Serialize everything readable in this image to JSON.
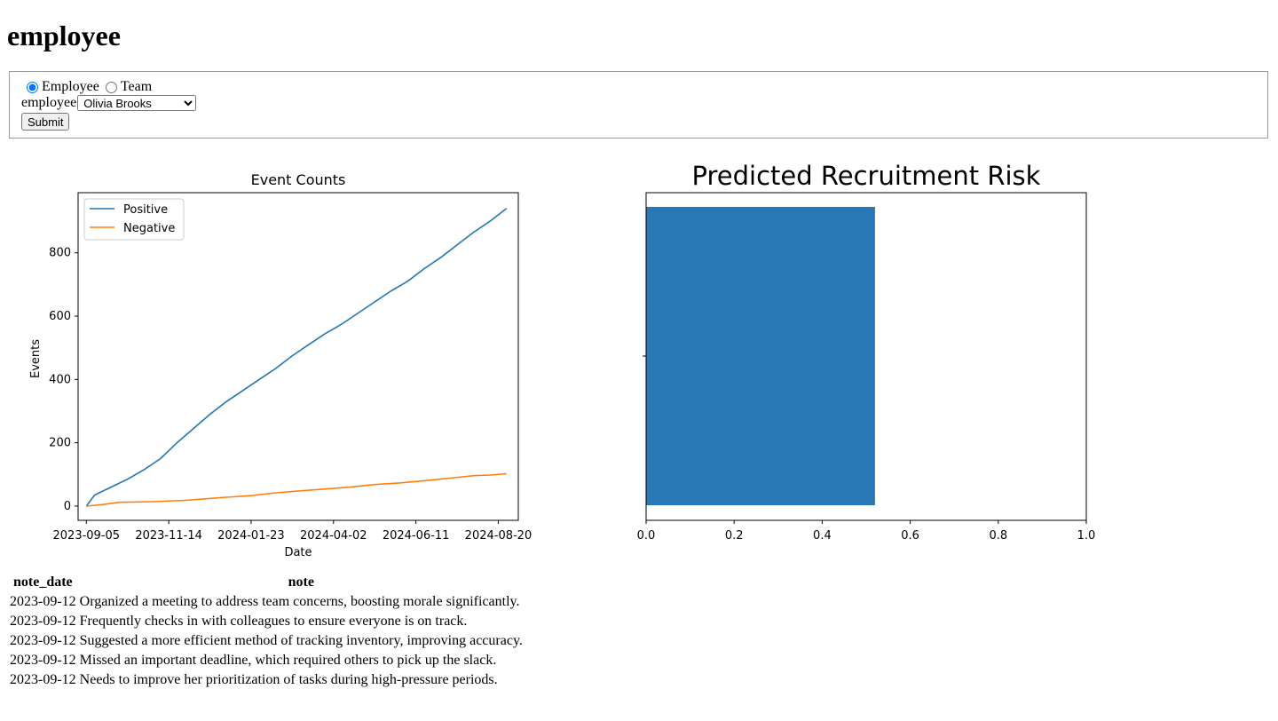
{
  "page": {
    "heading": "employee"
  },
  "form": {
    "mode_options": [
      {
        "label": "Employee",
        "checked": true
      },
      {
        "label": "Team",
        "checked": false
      }
    ],
    "employee_label": "employee",
    "employee_selected": "Olivia Brooks",
    "submit_label": "Submit"
  },
  "line_chart": {
    "chart_data": {
      "type": "line",
      "title": "Event Counts",
      "xlabel": "Date",
      "ylabel": "Events",
      "x_ticks": [
        "2023-09-05",
        "2023-11-14",
        "2024-01-23",
        "2024-04-02",
        "2024-06-11",
        "2024-08-20"
      ],
      "y_ticks": [
        0,
        200,
        400,
        600,
        800
      ],
      "ylim": [
        -45,
        990
      ],
      "xlim": [
        "2023-08-29",
        "2024-09-06"
      ],
      "legend": "top-left",
      "grid": false,
      "series": [
        {
          "name": "Positive",
          "color": "#1f77b4",
          "points": [
            [
              "2023-09-05",
              0
            ],
            [
              "2023-09-12",
              35
            ],
            [
              "2023-09-26",
              60
            ],
            [
              "2023-10-10",
              85
            ],
            [
              "2023-10-24",
              115
            ],
            [
              "2023-11-07",
              150
            ],
            [
              "2023-11-21",
              200
            ],
            [
              "2023-12-05",
              245
            ],
            [
              "2023-12-19",
              290
            ],
            [
              "2024-01-02",
              330
            ],
            [
              "2024-01-16",
              365
            ],
            [
              "2024-01-30",
              400
            ],
            [
              "2024-02-13",
              435
            ],
            [
              "2024-02-27",
              475
            ],
            [
              "2024-03-12",
              510
            ],
            [
              "2024-03-26",
              545
            ],
            [
              "2024-04-09",
              575
            ],
            [
              "2024-04-23",
              610
            ],
            [
              "2024-05-07",
              645
            ],
            [
              "2024-05-21",
              680
            ],
            [
              "2024-06-04",
              710
            ],
            [
              "2024-06-18",
              750
            ],
            [
              "2024-07-02",
              785
            ],
            [
              "2024-07-16",
              825
            ],
            [
              "2024-07-30",
              865
            ],
            [
              "2024-08-13",
              900
            ],
            [
              "2024-08-27",
              940
            ]
          ]
        },
        {
          "name": "Negative",
          "color": "#ff7f0e",
          "points": [
            [
              "2023-09-05",
              0
            ],
            [
              "2023-09-19",
              5
            ],
            [
              "2023-10-03",
              12
            ],
            [
              "2023-10-31",
              14
            ],
            [
              "2023-11-28",
              18
            ],
            [
              "2023-12-12",
              22
            ],
            [
              "2024-01-02",
              28
            ],
            [
              "2024-01-23",
              33
            ],
            [
              "2024-02-13",
              42
            ],
            [
              "2024-03-05",
              48
            ],
            [
              "2024-03-26",
              54
            ],
            [
              "2024-04-16",
              60
            ],
            [
              "2024-05-07",
              68
            ],
            [
              "2024-05-28",
              73
            ],
            [
              "2024-06-18",
              80
            ],
            [
              "2024-07-09",
              88
            ],
            [
              "2024-07-30",
              96
            ],
            [
              "2024-08-13",
              98
            ],
            [
              "2024-08-27",
              102
            ]
          ]
        }
      ]
    }
  },
  "bar_chart": {
    "chart_data": {
      "type": "bar",
      "orientation": "horizontal",
      "title": "Predicted Recruitment Risk",
      "xlim": [
        0,
        1
      ],
      "x_ticks": [
        "0.0",
        "0.2",
        "0.4",
        "0.6",
        "0.8",
        "1.0"
      ],
      "values": [
        0.52
      ],
      "color": "#2878b5",
      "grid": false
    }
  },
  "notes_table": {
    "headers": [
      "note_date",
      "note"
    ],
    "rows": [
      [
        "2023-09-12",
        "Organized a meeting to address team concerns, boosting morale significantly."
      ],
      [
        "2023-09-12",
        "Frequently checks in with colleagues to ensure everyone is on track."
      ],
      [
        "2023-09-12",
        "Suggested a more efficient method of tracking inventory, improving accuracy."
      ],
      [
        "2023-09-12",
        "Missed an important deadline, which required others to pick up the slack."
      ],
      [
        "2023-09-12",
        "Needs to improve her prioritization of tasks during high-pressure periods."
      ]
    ]
  }
}
